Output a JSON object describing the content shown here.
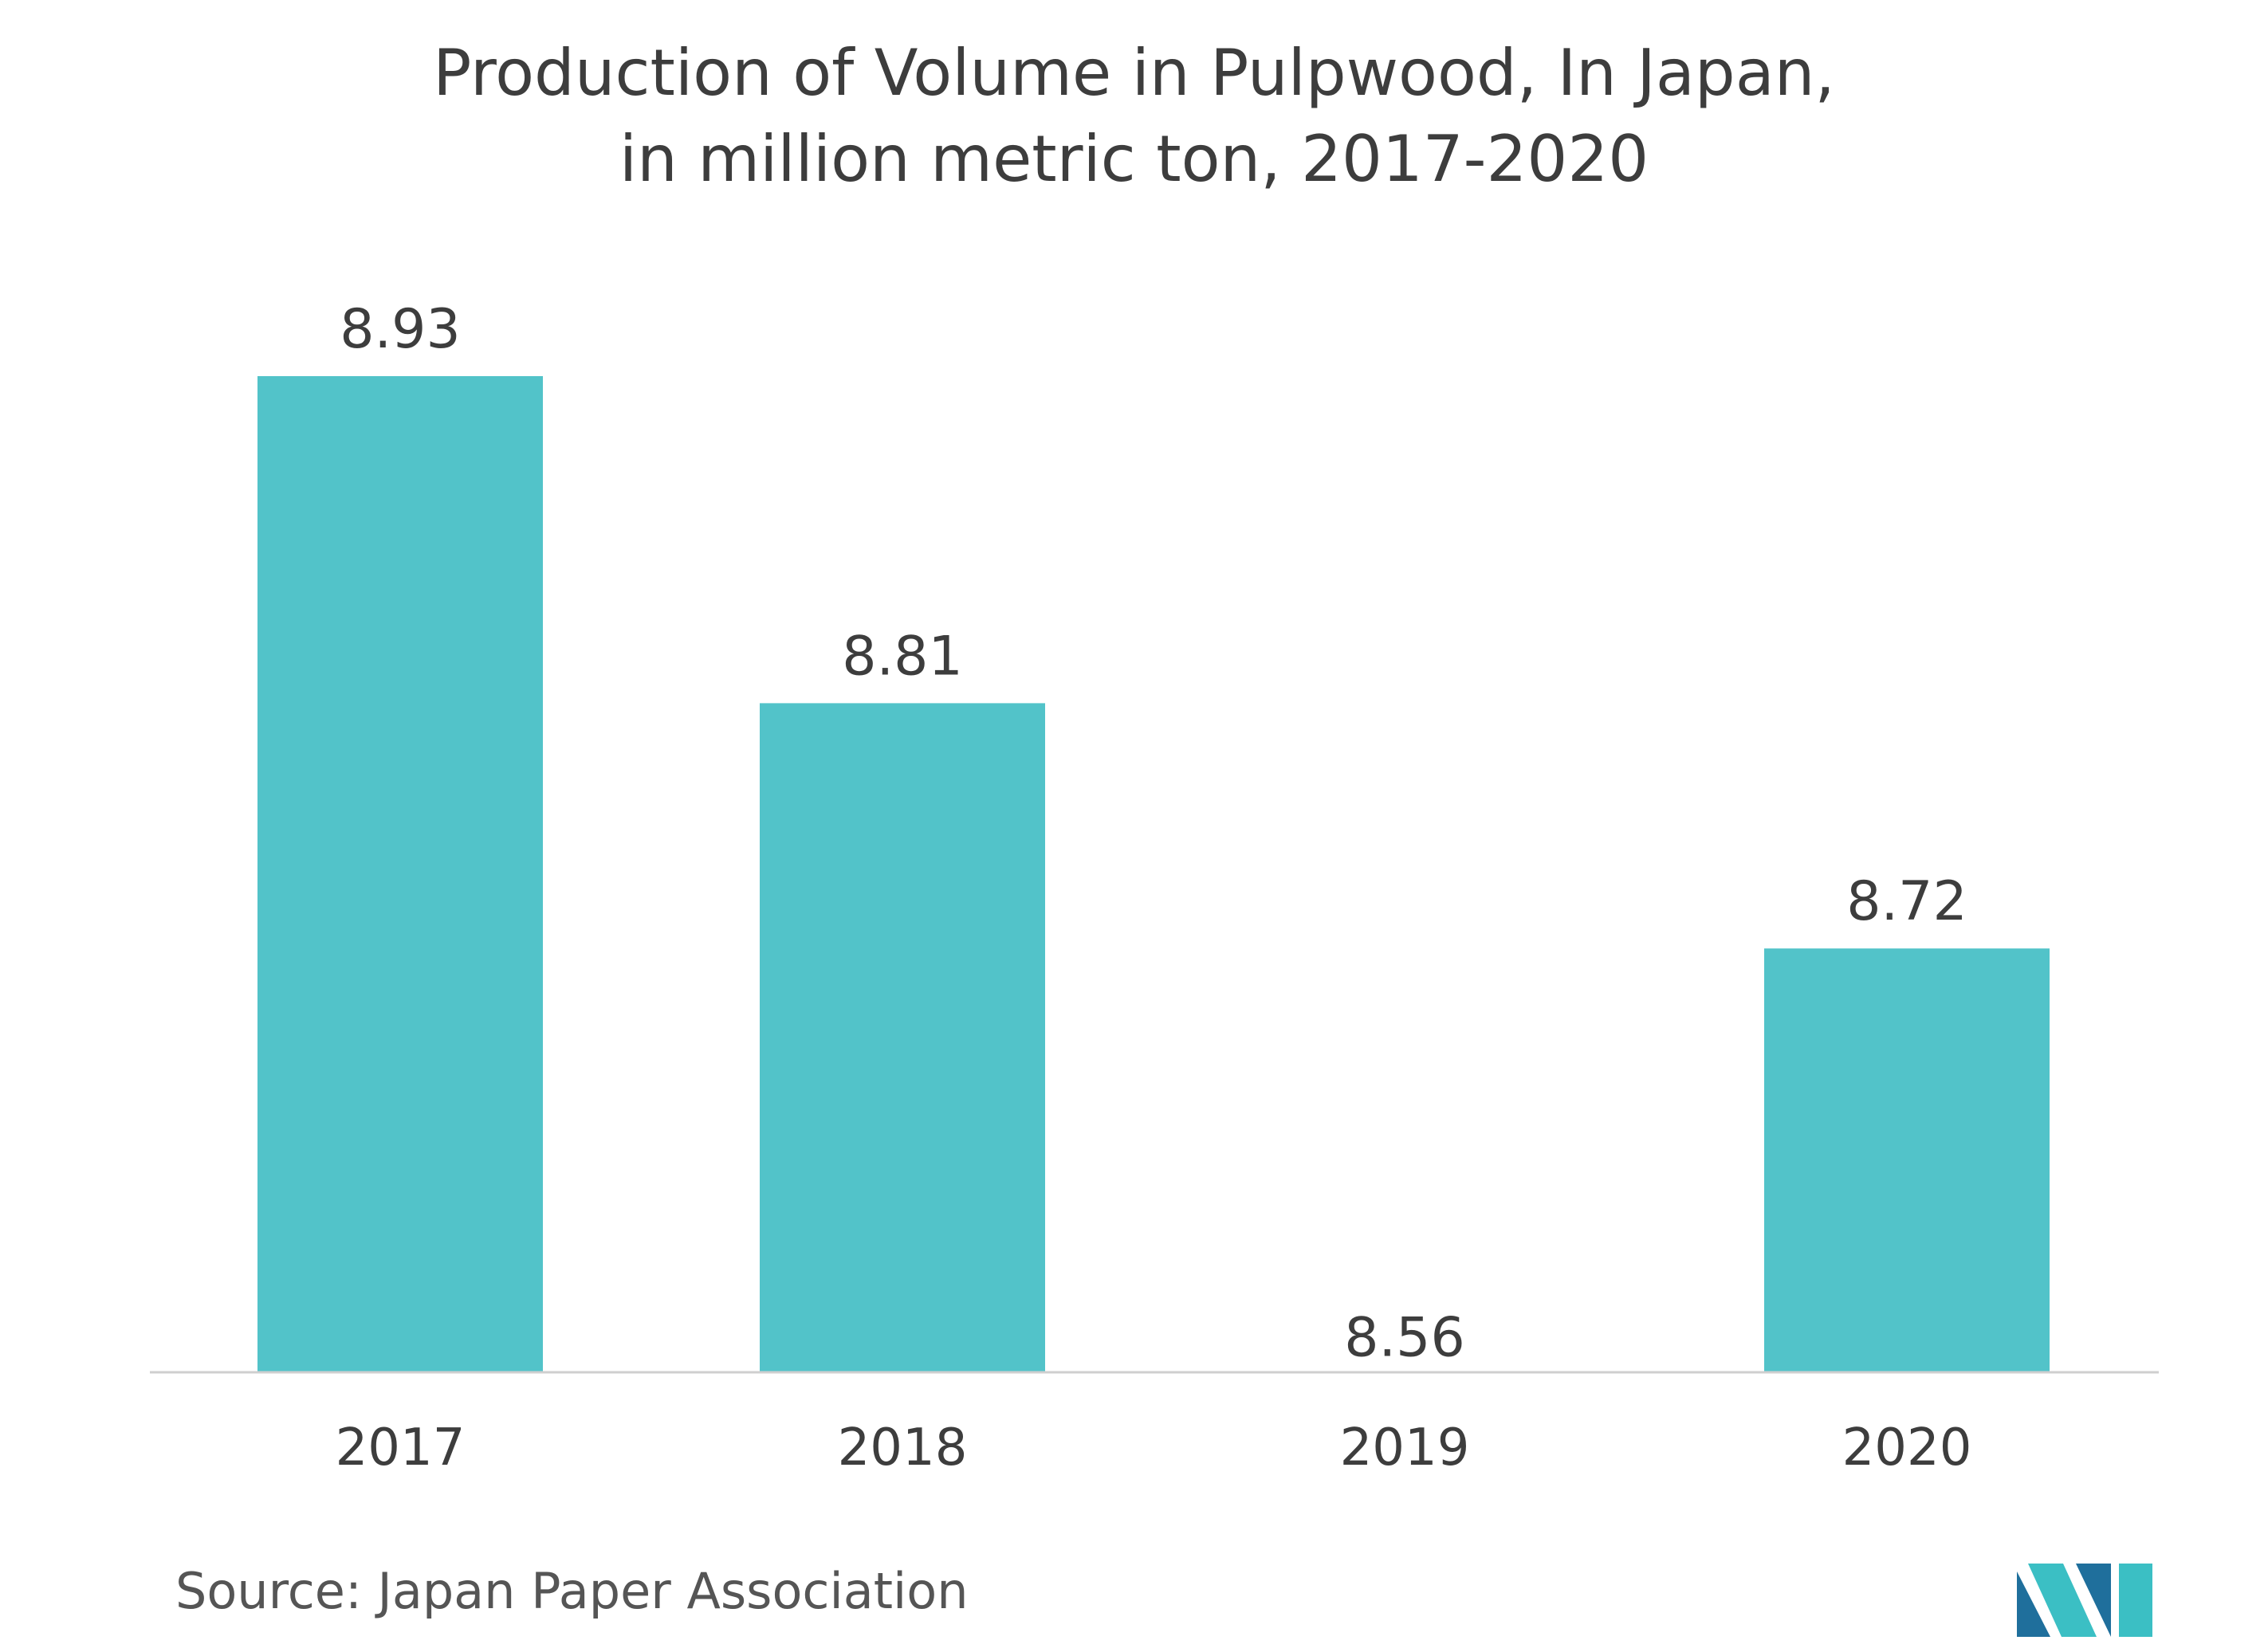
{
  "title_lines": [
    "Production of Volume in Pulpwood, In Japan,",
    "in million metric ton, 2017-2020"
  ],
  "source": "Source: Japan Paper Association",
  "logo": {
    "icon": "mordor-intelligence-logo-icon",
    "colors": [
      "#1f6f9c",
      "#3bbfc4"
    ]
  },
  "colors": {
    "bar": "#52c3c9",
    "axis": "#cfcfcf",
    "text": "#3d3d3d"
  },
  "chart_data": {
    "type": "bar",
    "title": "Production of Volume in Pulpwood, In Japan, in million metric ton, 2017-2020",
    "categories": [
      "2017",
      "2018",
      "2019",
      "2020"
    ],
    "values": [
      8.93,
      8.81,
      8.56,
      8.72
    ],
    "data_labels": [
      "8.93",
      "8.81",
      "8.56",
      "8.72"
    ],
    "xlabel": "",
    "ylabel": "",
    "grid": false,
    "legend": "none"
  }
}
